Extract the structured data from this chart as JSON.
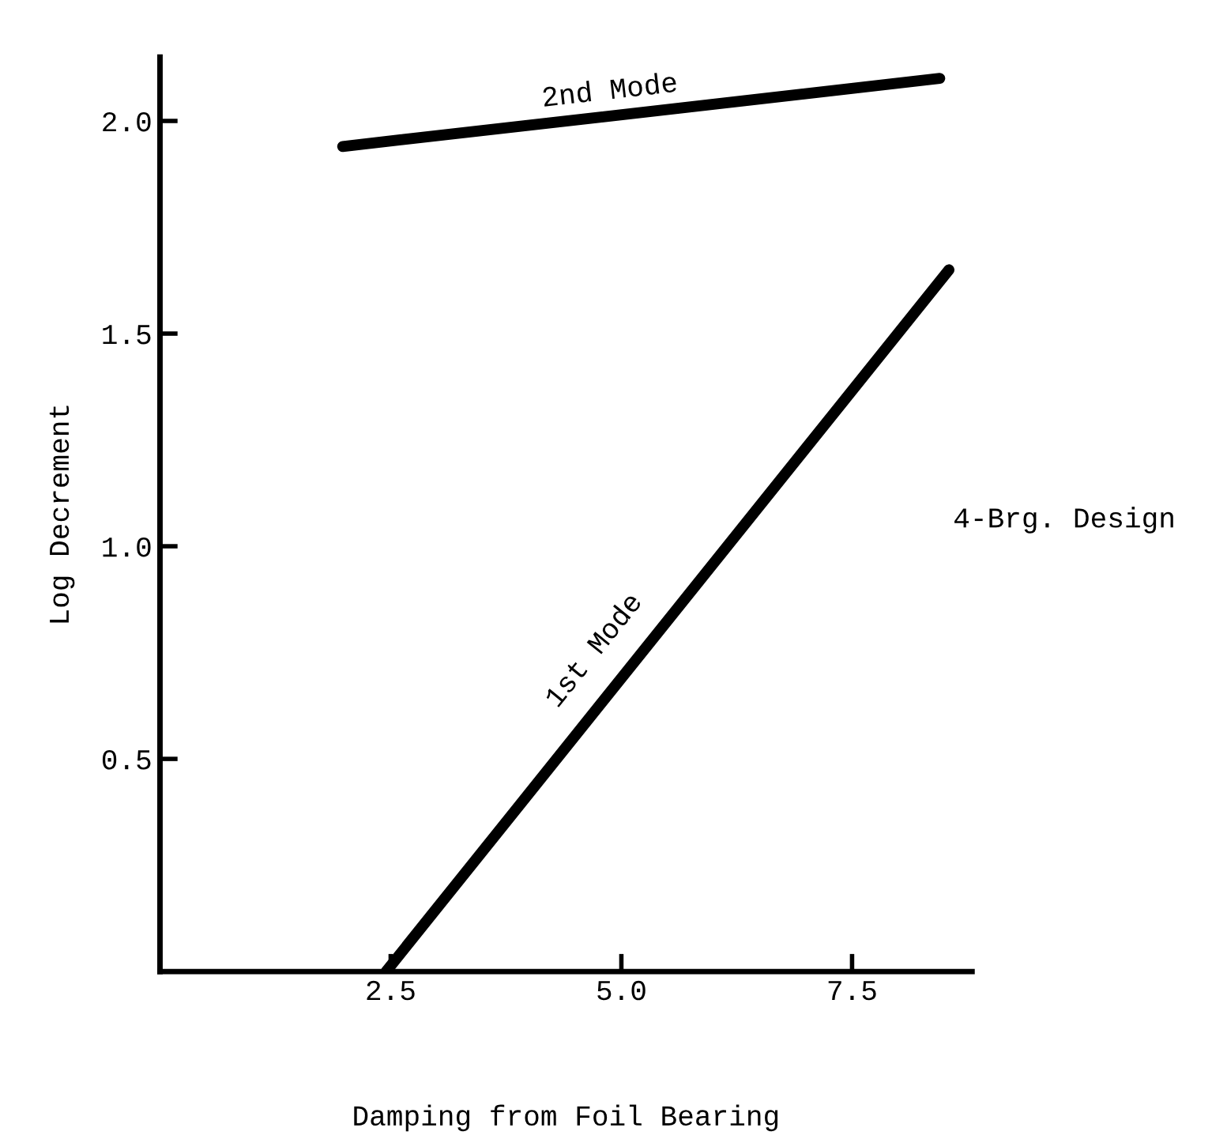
{
  "chart_data": {
    "type": "line",
    "xlabel": "Damping from Foil Bearing",
    "ylabel": "Log Decrement",
    "series": [
      {
        "name": "1st Mode",
        "color": "#000000",
        "x": [
          2.45,
          8.55
        ],
        "values": [
          0,
          1.65
        ]
      },
      {
        "name": "2nd Mode",
        "color": "#000000",
        "x": [
          1.98,
          8.45
        ],
        "values": [
          1.94,
          2.1
        ]
      }
    ],
    "xlim": [
      0,
      8.8
    ],
    "ylim": [
      0,
      2.15
    ],
    "xticks": [
      {
        "value": 2.5,
        "label": "2.5"
      },
      {
        "value": 5,
        "label": "5.0"
      },
      {
        "value": 7.5,
        "label": "7.5"
      }
    ],
    "yticks": [
      0.5,
      {
        "value": 1,
        "label": "1.0"
      },
      1.5,
      {
        "value": 2,
        "label": "2.0"
      }
    ],
    "annotations": [
      "4-Brg. Design"
    ],
    "grid": false,
    "legend": false,
    "marker": "none",
    "line_style": "solid"
  }
}
